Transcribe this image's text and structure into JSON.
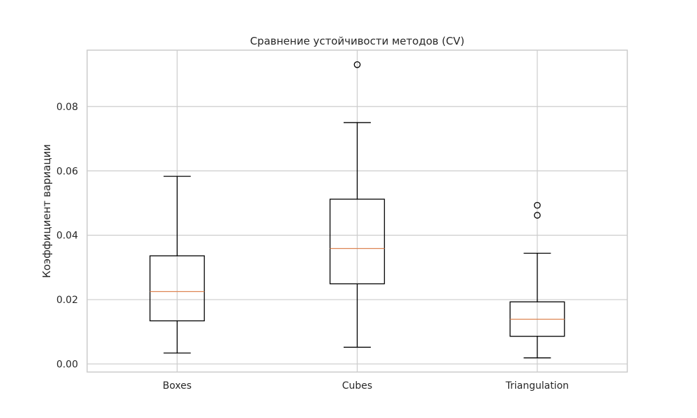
{
  "chart_data": {
    "type": "boxplot",
    "title": "Сравнение устойчивости методов (CV)",
    "xlabel": "",
    "ylabel": "Коэффициент вариации",
    "ylim": [
      -0.0025,
      0.0975
    ],
    "yticks": [
      0.0,
      0.02,
      0.04,
      0.06,
      0.08
    ],
    "ytick_labels": [
      "0.00",
      "0.02",
      "0.04",
      "0.06",
      "0.08"
    ],
    "grid": true,
    "legend": "none",
    "categories": [
      "Boxes",
      "Cubes",
      "Triangulation"
    ],
    "boxes": [
      {
        "category": "Boxes",
        "whisker_low": 0.0034,
        "q1": 0.0134,
        "median": 0.0225,
        "q3": 0.0336,
        "whisker_high": 0.0583,
        "outliers": []
      },
      {
        "category": "Cubes",
        "whisker_low": 0.0052,
        "q1": 0.0249,
        "median": 0.0359,
        "q3": 0.0512,
        "whisker_high": 0.075,
        "outliers": [
          0.093
        ]
      },
      {
        "category": "Triangulation",
        "whisker_low": 0.0019,
        "q1": 0.0086,
        "median": 0.0139,
        "q3": 0.0193,
        "whisker_high": 0.0344,
        "outliers": [
          0.0462,
          0.0493
        ]
      }
    ],
    "colors": {
      "box": "#000000",
      "median": "#dd8452",
      "grid": "#cccccc",
      "frame": "#cccccc"
    }
  }
}
